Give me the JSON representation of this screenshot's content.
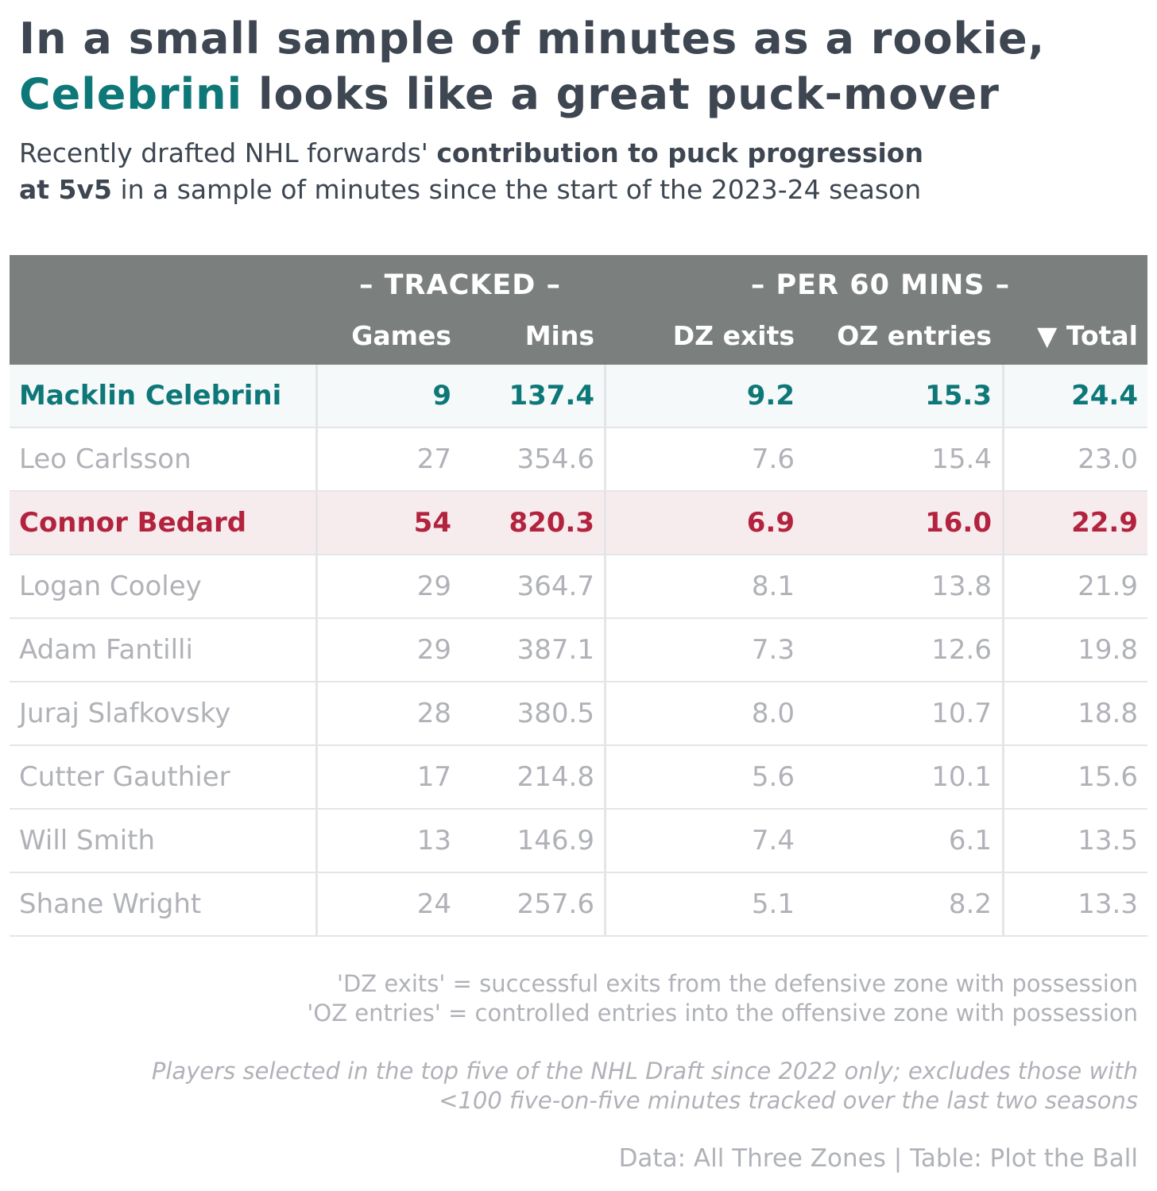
{
  "title": {
    "line1": "In a small sample of minutes as a rookie,",
    "line2_highlight": "Celebrini",
    "line2_rest": " looks like a great puck-mover"
  },
  "subtitle": {
    "part1": "Recently drafted NHL forwards' ",
    "bold1": "contribution to puck progression",
    "bold2": "at 5v5",
    "part2": " in a sample of minutes since the start of the 2023-24 season"
  },
  "colors": {
    "title": "#3d4651",
    "celebrini": "#0e7778",
    "bedard": "#b3233e",
    "header_bg": "#7b807e",
    "muted": "#b0b2b8",
    "celebrini_row_bg": "#f5f9fa",
    "bedard_row_bg": "#f6ecee"
  },
  "chart_data": {
    "type": "table",
    "column_groups": [
      {
        "label": "– TRACKED –",
        "columns": [
          "Games",
          "Mins"
        ]
      },
      {
        "label": "– PER 60 MINS –",
        "columns": [
          "DZ exits",
          "OZ entries",
          "▼ Total"
        ]
      }
    ],
    "columns": [
      "",
      "Games",
      "Mins",
      "DZ exits",
      "OZ entries",
      "▼ Total"
    ],
    "sort": {
      "column": "Total",
      "order": "descending"
    },
    "rows": [
      {
        "player": "Macklin Celebrini",
        "games": "9",
        "mins": "137.4",
        "dz_exits": "9.2",
        "oz_entries": "15.3",
        "total": "24.4",
        "highlight": "celebrini"
      },
      {
        "player": "Leo Carlsson",
        "games": "27",
        "mins": "354.6",
        "dz_exits": "7.6",
        "oz_entries": "15.4",
        "total": "23.0",
        "highlight": "none"
      },
      {
        "player": "Connor Bedard",
        "games": "54",
        "mins": "820.3",
        "dz_exits": "6.9",
        "oz_entries": "16.0",
        "total": "22.9",
        "highlight": "bedard"
      },
      {
        "player": "Logan Cooley",
        "games": "29",
        "mins": "364.7",
        "dz_exits": "8.1",
        "oz_entries": "13.8",
        "total": "21.9",
        "highlight": "none"
      },
      {
        "player": "Adam Fantilli",
        "games": "29",
        "mins": "387.1",
        "dz_exits": "7.3",
        "oz_entries": "12.6",
        "total": "19.8",
        "highlight": "none"
      },
      {
        "player": "Juraj Slafkovsky",
        "games": "28",
        "mins": "380.5",
        "dz_exits": "8.0",
        "oz_entries": "10.7",
        "total": "18.8",
        "highlight": "none"
      },
      {
        "player": "Cutter Gauthier",
        "games": "17",
        "mins": "214.8",
        "dz_exits": "5.6",
        "oz_entries": "10.1",
        "total": "15.6",
        "highlight": "none"
      },
      {
        "player": "Will Smith",
        "games": "13",
        "mins": "146.9",
        "dz_exits": "7.4",
        "oz_entries": "6.1",
        "total": "13.5",
        "highlight": "none"
      },
      {
        "player": "Shane Wright",
        "games": "24",
        "mins": "257.6",
        "dz_exits": "5.1",
        "oz_entries": "8.2",
        "total": "13.3",
        "highlight": "none"
      }
    ]
  },
  "notes": {
    "def1": "'DZ exits' = successful exits from the defensive zone with possession",
    "def2": "'OZ entries' = controlled entries into the offensive zone with possession",
    "foot1": "Players selected in the top five of the NHL Draft since 2022 only; excludes those with",
    "foot2": "<100 five-on-five minutes tracked over the last two seasons",
    "source": "Data: All Three Zones | Table: Plot the Ball"
  }
}
